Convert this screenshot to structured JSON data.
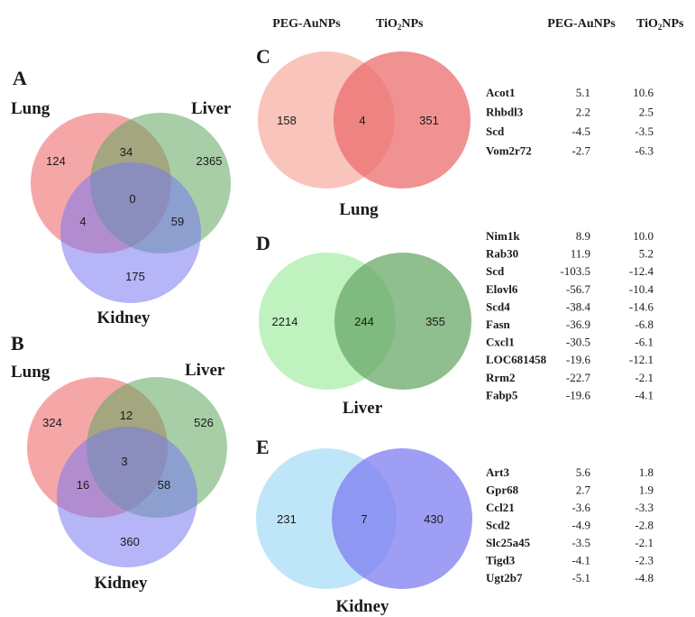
{
  "colors": {
    "red": "#ec5f5f",
    "green": "#5ea65e",
    "blue": "#7878f0",
    "lung_light": "#f8c4bb",
    "lung_dark": "#ec6e6e",
    "liver_light": "#bff2bf",
    "liver_dark": "#6aa86a",
    "kidney_light": "#bfe6f8",
    "kidney_dark": "#7d7df0"
  },
  "panel_a": {
    "letter": "A",
    "labels": {
      "lung": "Lung",
      "liver": "Liver",
      "kidney": "Kidney"
    },
    "counts": {
      "lung_only": "124",
      "liver_only": "2365",
      "kidney_only": "175",
      "lung_liver": "34",
      "lung_kidney": "4",
      "liver_kidney": "59",
      "all": "0"
    }
  },
  "panel_b": {
    "letter": "B",
    "labels": {
      "lung": "Lung",
      "liver": "Liver",
      "kidney": "Kidney"
    },
    "counts": {
      "lung_only": "324",
      "liver_only": "526",
      "kidney_only": "360",
      "lung_liver": "12",
      "lung_kidney": "16",
      "liver_kidney": "58",
      "all": "3"
    }
  },
  "headers": {
    "peg_top": "PEG-AuNPs",
    "tio2_top_main": "TiO",
    "tio2_top_sub": "2",
    "tio2_top_end": "NPs",
    "peg_table": "PEG-AuNPs",
    "tio2_table_main": "TiO",
    "tio2_table_sub": "2",
    "tio2_table_end": "NPs"
  },
  "panel_c": {
    "letter": "C",
    "organ": "Lung",
    "counts": {
      "peg_only": "158",
      "shared": "4",
      "tio2_only": "351"
    },
    "rows": [
      {
        "gene": "Acot1",
        "peg": "5.1",
        "tio2": "10.6"
      },
      {
        "gene": "Rhbdl3",
        "peg": "2.2",
        "tio2": "2.5"
      },
      {
        "gene": "Scd",
        "peg": "-4.5",
        "tio2": "-3.5"
      },
      {
        "gene": "Vom2r72",
        "peg": "-2.7",
        "tio2": "-6.3"
      }
    ]
  },
  "panel_d": {
    "letter": "D",
    "organ": "Liver",
    "counts": {
      "peg_only": "2214",
      "shared": "244",
      "tio2_only": "355"
    },
    "rows": [
      {
        "gene": "Nim1k",
        "peg": "8.9",
        "tio2": "10.0"
      },
      {
        "gene": "Rab30",
        "peg": "11.9",
        "tio2": "5.2"
      },
      {
        "gene": "Scd",
        "peg": "-103.5",
        "tio2": "-12.4"
      },
      {
        "gene": "Elovl6",
        "peg": "-56.7",
        "tio2": "-10.4"
      },
      {
        "gene": "Scd4",
        "peg": "-38.4",
        "tio2": "-14.6"
      },
      {
        "gene": "Fasn",
        "peg": "-36.9",
        "tio2": "-6.8"
      },
      {
        "gene": "Cxcl1",
        "peg": "-30.5",
        "tio2": "-6.1"
      },
      {
        "gene": "LOC681458",
        "peg": "-19.6",
        "tio2": "-12.1"
      },
      {
        "gene": "Rrm2",
        "peg": "-22.7",
        "tio2": "-2.1"
      },
      {
        "gene": "Fabp5",
        "peg": "-19.6",
        "tio2": "-4.1"
      }
    ]
  },
  "panel_e": {
    "letter": "E",
    "organ": "Kidney",
    "counts": {
      "peg_only": "231",
      "shared": "7",
      "tio2_only": "430"
    },
    "rows": [
      {
        "gene": "Art3",
        "peg": "5.6",
        "tio2": "1.8"
      },
      {
        "gene": "Gpr68",
        "peg": "2.7",
        "tio2": "1.9"
      },
      {
        "gene": "Ccl21",
        "peg": "-3.6",
        "tio2": "-3.3"
      },
      {
        "gene": "Scd2",
        "peg": "-4.9",
        "tio2": "-2.8"
      },
      {
        "gene": "Slc25a45",
        "peg": "-3.5",
        "tio2": "-2.1"
      },
      {
        "gene": "Tigd3",
        "peg": "-4.1",
        "tio2": "-2.3"
      },
      {
        "gene": "Ugt2b7",
        "peg": "-5.1",
        "tio2": "-4.8"
      }
    ]
  }
}
